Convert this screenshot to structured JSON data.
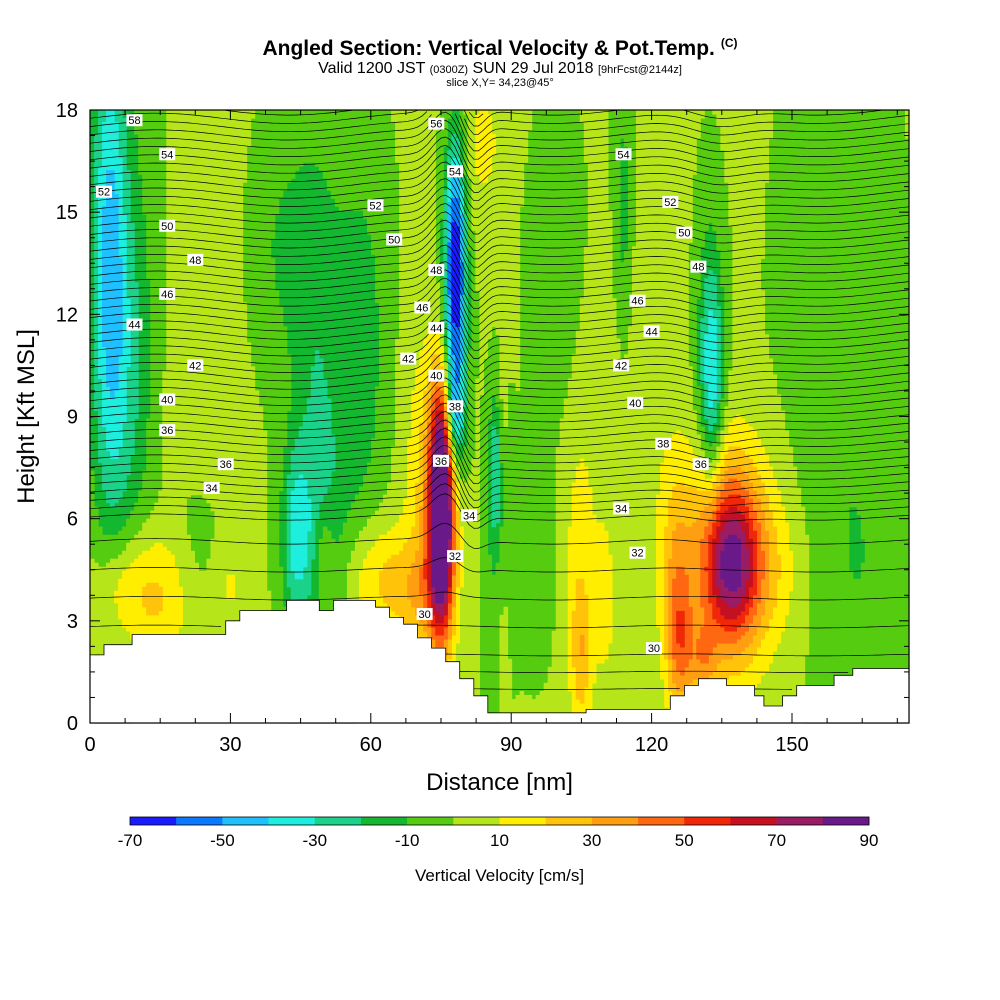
{
  "header": {
    "title": "Angled Section: Vertical Velocity & Pot.Temp.",
    "copyright": "(C)",
    "valid_prefix": "Valid 1200 JST",
    "valid_utc": "(0300Z)",
    "valid_date": "SUN 29 Jul 2018",
    "forecast": "[9hrFcst@2144z]",
    "slice": "slice X,Y= 34,23@45°"
  },
  "chart_data": {
    "type": "heatmap",
    "xlabel": "Distance [nm]",
    "ylabel": "Height [Kft MSL]",
    "xlim": [
      0,
      175
    ],
    "ylim": [
      0,
      18
    ],
    "xticks": [
      0,
      30,
      60,
      90,
      120,
      150
    ],
    "yticks": [
      0,
      3,
      6,
      9,
      12,
      15,
      18
    ],
    "colorbar": {
      "label": "Vertical Velocity [cm/s]",
      "tick_labels": [
        "-70",
        "-50",
        "-30",
        "-10",
        "10",
        "30",
        "50",
        "70",
        "90"
      ],
      "levels": [
        -70,
        -60,
        -50,
        -40,
        -30,
        -20,
        -10,
        0,
        10,
        20,
        30,
        40,
        50,
        60,
        70,
        80,
        90
      ],
      "colors": [
        "#1a1aff",
        "#0a78ff",
        "#1ec0ff",
        "#1eeedd",
        "#1ad28a",
        "#14b830",
        "#55cc10",
        "#b6e61a",
        "#ffee00",
        "#ffc40a",
        "#ff9e10",
        "#ff6810",
        "#f02808",
        "#c41020",
        "#9a1c64",
        "#6a1a88"
      ]
    },
    "terrain_kft": [
      [
        0,
        2.0
      ],
      [
        3,
        2.0
      ],
      [
        3,
        2.3
      ],
      [
        9,
        2.3
      ],
      [
        9,
        2.6
      ],
      [
        29,
        2.6
      ],
      [
        29,
        3.0
      ],
      [
        32,
        3.0
      ],
      [
        32,
        3.3
      ],
      [
        42,
        3.3
      ],
      [
        42,
        3.6
      ],
      [
        49,
        3.6
      ],
      [
        49,
        3.3
      ],
      [
        52,
        3.3
      ],
      [
        52,
        3.6
      ],
      [
        61,
        3.6
      ],
      [
        61,
        3.4
      ],
      [
        64,
        3.4
      ],
      [
        64,
        3.1
      ],
      [
        67,
        3.1
      ],
      [
        67,
        2.9
      ],
      [
        70,
        2.9
      ],
      [
        70,
        2.5
      ],
      [
        73,
        2.5
      ],
      [
        73,
        2.2
      ],
      [
        76,
        2.2
      ],
      [
        76,
        1.8
      ],
      [
        79,
        1.8
      ],
      [
        79,
        1.3
      ],
      [
        82,
        1.3
      ],
      [
        82,
        0.8
      ],
      [
        85,
        0.8
      ],
      [
        85,
        0.3
      ],
      [
        106,
        0.3
      ],
      [
        106,
        0.4
      ],
      [
        124,
        0.4
      ],
      [
        124,
        0.8
      ],
      [
        127,
        0.8
      ],
      [
        127,
        1.1
      ],
      [
        130,
        1.1
      ],
      [
        130,
        1.3
      ],
      [
        136,
        1.3
      ],
      [
        136,
        1.1
      ],
      [
        142,
        1.1
      ],
      [
        142,
        0.8
      ],
      [
        144,
        0.8
      ],
      [
        144,
        0.5
      ],
      [
        148,
        0.5
      ],
      [
        148,
        0.8
      ],
      [
        151,
        0.8
      ],
      [
        151,
        1.1
      ],
      [
        159,
        1.1
      ],
      [
        159,
        1.4
      ],
      [
        163,
        1.4
      ],
      [
        163,
        1.6
      ],
      [
        175,
        1.6
      ]
    ],
    "theta_levels": [
      30,
      32,
      34,
      36,
      38,
      40,
      42,
      44,
      46,
      48,
      50,
      52,
      54,
      56,
      58
    ],
    "contour_labels": [
      {
        "v": "58",
        "x": 9.5,
        "y": 17.7
      },
      {
        "v": "56",
        "x": 74,
        "y": 17.6
      },
      {
        "v": "54",
        "x": 16.5,
        "y": 16.7
      },
      {
        "v": "54",
        "x": 78,
        "y": 16.2
      },
      {
        "v": "54",
        "x": 114,
        "y": 16.7
      },
      {
        "v": "52",
        "x": 3,
        "y": 15.6
      },
      {
        "v": "52",
        "x": 61,
        "y": 15.2
      },
      {
        "v": "52",
        "x": 124,
        "y": 15.3
      },
      {
        "v": "50",
        "x": 16.5,
        "y": 14.6
      },
      {
        "v": "50",
        "x": 65,
        "y": 14.2
      },
      {
        "v": "50",
        "x": 127,
        "y": 14.4
      },
      {
        "v": "48",
        "x": 22.5,
        "y": 13.6
      },
      {
        "v": "48",
        "x": 74,
        "y": 13.3
      },
      {
        "v": "48",
        "x": 130,
        "y": 13.4
      },
      {
        "v": "46",
        "x": 16.5,
        "y": 12.6
      },
      {
        "v": "46",
        "x": 71,
        "y": 12.2
      },
      {
        "v": "46",
        "x": 117,
        "y": 12.4
      },
      {
        "v": "44",
        "x": 9.5,
        "y": 11.7
      },
      {
        "v": "44",
        "x": 74,
        "y": 11.6
      },
      {
        "v": "44",
        "x": 120,
        "y": 11.5
      },
      {
        "v": "42",
        "x": 22.5,
        "y": 10.5
      },
      {
        "v": "42",
        "x": 68,
        "y": 10.7
      },
      {
        "v": "42",
        "x": 113.5,
        "y": 10.5
      },
      {
        "v": "40",
        "x": 16.5,
        "y": 9.5
      },
      {
        "v": "40",
        "x": 74,
        "y": 10.2
      },
      {
        "v": "40",
        "x": 116.5,
        "y": 9.4
      },
      {
        "v": "38",
        "x": 78,
        "y": 9.3
      },
      {
        "v": "38",
        "x": 122.5,
        "y": 8.2
      },
      {
        "v": "36",
        "x": 16.5,
        "y": 8.6
      },
      {
        "v": "36",
        "x": 29,
        "y": 7.6
      },
      {
        "v": "36",
        "x": 75,
        "y": 7.7
      },
      {
        "v": "36",
        "x": 130.5,
        "y": 7.6
      },
      {
        "v": "34",
        "x": 26,
        "y": 6.9
      },
      {
        "v": "34",
        "x": 81,
        "y": 6.1
      },
      {
        "v": "34",
        "x": 113.5,
        "y": 6.3
      },
      {
        "v": "32",
        "x": 78,
        "y": 4.9
      },
      {
        "v": "32",
        "x": 117,
        "y": 5.0
      },
      {
        "v": "30",
        "x": 71.5,
        "y": 3.2
      },
      {
        "v": "30",
        "x": 120.5,
        "y": 2.2
      }
    ],
    "velocity_blobs": [
      {
        "x": 4,
        "y": 14,
        "sx": 2.5,
        "sy": 5,
        "a": -32
      },
      {
        "x": 6,
        "y": 13,
        "sx": 5,
        "sy": 6,
        "a": -12
      },
      {
        "x": 8,
        "y": 10,
        "sx": 4,
        "sy": 4,
        "a": -15
      },
      {
        "x": 40,
        "y": 14,
        "sx": 8,
        "sy": 2.5,
        "a": -12
      },
      {
        "x": 48,
        "y": 10,
        "sx": 4,
        "sy": 5,
        "a": -14
      },
      {
        "x": 58,
        "y": 11,
        "sx": 4,
        "sy": 4,
        "a": -16
      },
      {
        "x": 44,
        "y": 5.5,
        "sx": 2.2,
        "sy": 1.8,
        "a": -30
      },
      {
        "x": 50,
        "y": 6,
        "sx": 4,
        "sy": 3,
        "a": -13
      },
      {
        "x": 78,
        "y": 12,
        "sx": 1.7,
        "sy": 2.5,
        "a": -58
      },
      {
        "x": 78,
        "y": 15,
        "sx": 1.5,
        "sy": 2,
        "a": -32
      },
      {
        "x": 78,
        "y": 9,
        "sx": 1.5,
        "sy": 1,
        "a": -28
      },
      {
        "x": 87,
        "y": 7.5,
        "sx": 1.3,
        "sy": 1.5,
        "a": -32
      },
      {
        "x": 87,
        "y": 4,
        "sx": 2,
        "sy": 3,
        "a": -12
      },
      {
        "x": 95,
        "y": 5,
        "sx": 3,
        "sy": 2,
        "a": -10
      },
      {
        "x": 114,
        "y": 15,
        "sx": 1.5,
        "sy": 3,
        "a": -16
      },
      {
        "x": 133,
        "y": 10,
        "sx": 1.8,
        "sy": 2.5,
        "a": -28
      },
      {
        "x": 132,
        "y": 11,
        "sx": 2,
        "sy": 3,
        "a": -14
      },
      {
        "x": 100,
        "y": 13,
        "sx": 4,
        "sy": 3,
        "a": -10
      },
      {
        "x": 160,
        "y": 11,
        "sx": 8,
        "sy": 6,
        "a": -9
      },
      {
        "x": 165,
        "y": 4,
        "sx": 6,
        "sy": 3,
        "a": -7
      },
      {
        "x": 22,
        "y": 5,
        "sx": 4,
        "sy": 2,
        "a": -8
      },
      {
        "x": 75,
        "y": 7,
        "sx": 1.6,
        "sy": 2.2,
        "a": 78
      },
      {
        "x": 75,
        "y": 5,
        "sx": 2,
        "sy": 2,
        "a": 46
      },
      {
        "x": 74,
        "y": 6,
        "sx": 3,
        "sy": 3,
        "a": 25
      },
      {
        "x": 63,
        "y": 4.2,
        "sx": 6,
        "sy": 1.2,
        "a": 22
      },
      {
        "x": 50,
        "y": 5,
        "sx": 1.5,
        "sy": 1,
        "a": 14
      },
      {
        "x": 70,
        "y": 3.6,
        "sx": 3,
        "sy": 1,
        "a": 12
      },
      {
        "x": 137,
        "y": 4.6,
        "sx": 4,
        "sy": 1.6,
        "a": 52
      },
      {
        "x": 135,
        "y": 4.5,
        "sx": 8,
        "sy": 2.5,
        "a": 24
      },
      {
        "x": 136,
        "y": 6,
        "sx": 6,
        "sy": 2,
        "a": 14
      },
      {
        "x": 126,
        "y": 2.3,
        "sx": 2,
        "sy": 1.5,
        "a": 34
      },
      {
        "x": 131,
        "y": 1.8,
        "sx": 2,
        "sy": 0.8,
        "a": 22
      },
      {
        "x": 125,
        "y": 5,
        "sx": 2,
        "sy": 2,
        "a": 14
      },
      {
        "x": 14,
        "y": 3.7,
        "sx": 6,
        "sy": 1.5,
        "a": 22
      },
      {
        "x": 6,
        "y": 4,
        "sx": 4,
        "sy": 1,
        "a": 12
      },
      {
        "x": 30,
        "y": 4,
        "sx": 2.5,
        "sy": 1,
        "a": 10
      },
      {
        "x": 105,
        "y": 2,
        "sx": 1.5,
        "sy": 1.5,
        "a": 20
      },
      {
        "x": 104,
        "y": 4,
        "sx": 2,
        "sy": 3,
        "a": 10
      },
      {
        "x": 110,
        "y": 3,
        "sx": 2,
        "sy": 2,
        "a": 8
      },
      {
        "x": 145,
        "y": 4.5,
        "sx": 5,
        "sy": 1.5,
        "a": 10
      },
      {
        "x": 88,
        "y": 3,
        "sx": 1.2,
        "sy": 2.5,
        "a": 10
      },
      {
        "x": 88,
        "y": 8,
        "sx": 0.8,
        "sy": 1.5,
        "a": 18
      },
      {
        "x": 84,
        "y": 17,
        "sx": 3,
        "sy": 1.5,
        "a": 12
      },
      {
        "x": 28,
        "y": 14,
        "sx": 6,
        "sy": 3,
        "a": 9
      },
      {
        "x": 108,
        "y": 8,
        "sx": 5,
        "sy": 4,
        "a": 7
      },
      {
        "x": 120,
        "y": 12,
        "sx": 4,
        "sy": 4,
        "a": 6
      },
      {
        "x": 22,
        "y": 9,
        "sx": 5,
        "sy": 2,
        "a": 6
      },
      {
        "x": 70,
        "y": 8,
        "sx": 3,
        "sy": 3,
        "a": 8
      }
    ]
  }
}
